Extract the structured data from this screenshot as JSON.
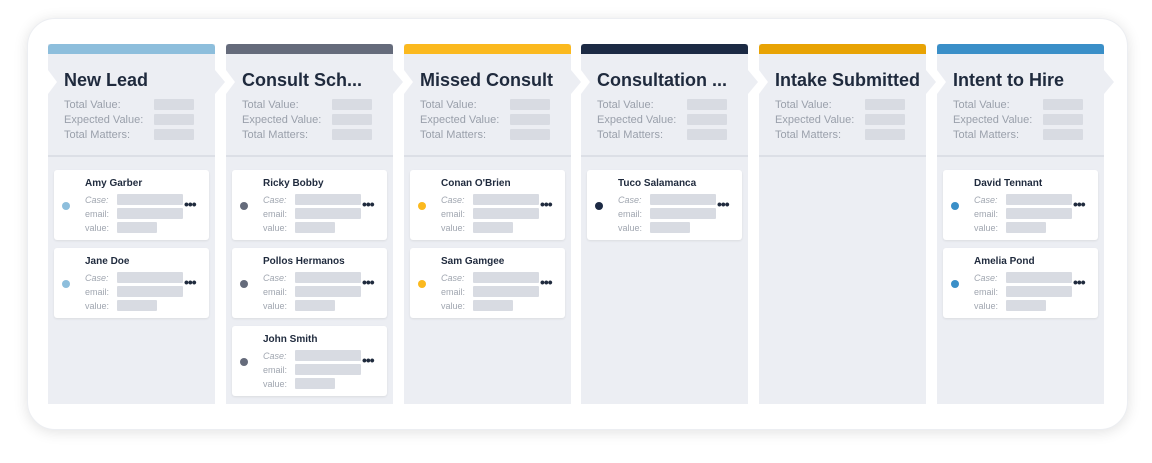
{
  "stat_labels": {
    "total_value": "Total Value:",
    "expected_value": "Expected Value:",
    "total_matters": "Total Matters:"
  },
  "card_labels": {
    "case": "Case:",
    "email": "email:",
    "value": "value:"
  },
  "more_label": "•••",
  "columns": [
    {
      "title": "New Lead",
      "color": "#8dbedc",
      "dot": "#8dbedc",
      "cards": [
        "Amy Garber",
        "Jane Doe"
      ]
    },
    {
      "title": "Consult Sch...",
      "color": "#656b7b",
      "dot": "#656b7b",
      "cards": [
        "Ricky Bobby",
        "Pollos Hermanos",
        "John Smith"
      ]
    },
    {
      "title": "Missed Consult",
      "color": "#fbb91e",
      "dot": "#fbb91e",
      "cards": [
        "Conan O'Brien",
        "Sam Gamgee"
      ]
    },
    {
      "title": "Consultation ...",
      "color": "#1c2a44",
      "dot": "#1c2a44",
      "cards": [
        "Tuco Salamanca"
      ]
    },
    {
      "title": "Intake Submitted",
      "color": "#e8a304",
      "dot": "#e8a304",
      "cards": []
    },
    {
      "title": "Intent to Hire",
      "color": "#3a8fc8",
      "dot": "#3a8fc8",
      "cards": [
        "David Tennant",
        "Amelia Pond"
      ]
    }
  ]
}
